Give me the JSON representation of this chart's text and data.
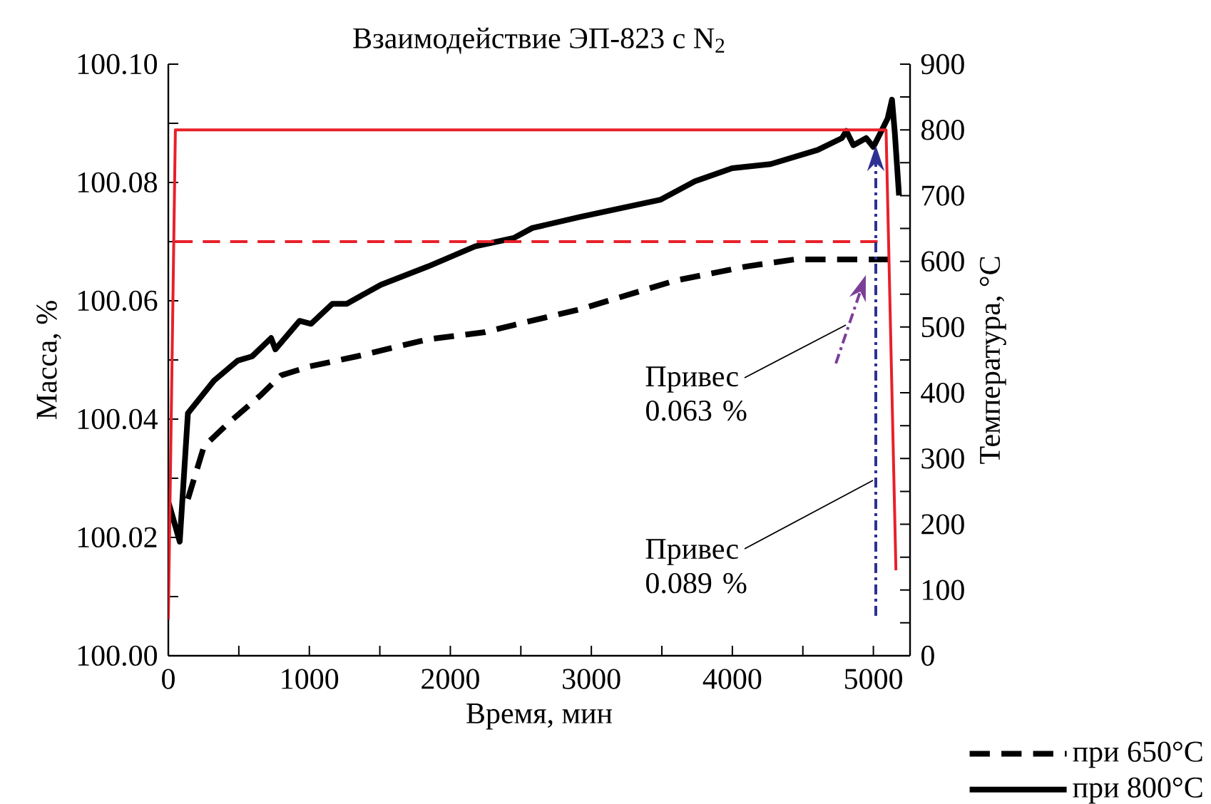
{
  "chart_data": {
    "type": "line",
    "title": "Взаимодействие ЭП-823 с N$_{2}$",
    "xlabel": "Время, мин",
    "ylabel": "Масса, %",
    "y2label": "Температура, °C",
    "xlim": [
      0,
      5260
    ],
    "ylim": [
      100.0,
      100.1
    ],
    "y2lim": [
      0,
      900
    ],
    "xticks": [
      0,
      {
        "value": 500,
        "label": null
      },
      1000,
      {
        "value": 1500,
        "label": null
      },
      2000,
      {
        "value": 2500,
        "label": null
      },
      3000,
      {
        "value": 3500,
        "label": null
      },
      4000,
      {
        "value": 4500,
        "label": null
      },
      5000
    ],
    "yticks": [
      {
        "value": 100.0,
        "label": "100.00"
      },
      {
        "value": 100.01,
        "label": null
      },
      {
        "value": 100.02,
        "label": "100.02"
      },
      {
        "value": 100.03,
        "label": null
      },
      {
        "value": 100.04,
        "label": "100.04"
      },
      {
        "value": 100.05,
        "label": null
      },
      {
        "value": 100.06,
        "label": "100.06"
      },
      {
        "value": 100.07,
        "label": null
      },
      {
        "value": 100.08,
        "label": "100.08"
      },
      {
        "value": 100.09,
        "label": null
      },
      {
        "value": 100.1,
        "label": "100.10"
      }
    ],
    "y2ticks": [
      0,
      {
        "value": 50,
        "label": null
      },
      100,
      {
        "value": 150,
        "label": null
      },
      200,
      {
        "value": 250,
        "label": null
      },
      300,
      {
        "value": 350,
        "label": null
      },
      400,
      {
        "value": 450,
        "label": null
      },
      500,
      {
        "value": 550,
        "label": null
      },
      600,
      {
        "value": 650,
        "label": null
      },
      700,
      {
        "value": 750,
        "label": null
      },
      800,
      {
        "value": 850,
        "label": null
      },
      900
    ],
    "legend": "bottom right",
    "series": [
      {
        "name": "при 650°C",
        "color": "#000000",
        "line_style": "dashed",
        "x": [
          139,
          253,
          425,
          658,
          800,
          1002,
          1336,
          1842,
          2247,
          2449,
          2925,
          3593,
          4099,
          4443,
          5111
        ],
        "values": [
          100.0265,
          100.0354,
          100.0393,
          100.0441,
          100.0474,
          100.0489,
          100.0506,
          100.0535,
          100.0547,
          100.0559,
          100.0586,
          100.0634,
          100.0658,
          100.067,
          100.067
        ]
      },
      {
        "name": "при 800°C",
        "color": "#000000",
        "line_style": "solid",
        "x": [
          3,
          81,
          139,
          324,
          493,
          594,
          729,
          759,
          931,
          1012,
          1164,
          1265,
          1508,
          1842,
          2176,
          2449,
          2581,
          2925,
          3492,
          3735,
          3998,
          4271,
          4605,
          4777,
          4808,
          4858,
          4949,
          5000,
          5051,
          5101,
          5132,
          5152,
          5182
        ],
        "values": [
          100.0258,
          100.0193,
          100.041,
          100.0465,
          100.0499,
          100.0506,
          100.0537,
          100.0518,
          100.0566,
          100.0561,
          100.0595,
          100.0595,
          100.0627,
          100.0658,
          100.0692,
          100.0706,
          100.0723,
          100.0742,
          100.0771,
          100.0802,
          100.0824,
          100.0831,
          100.0855,
          100.0875,
          100.0887,
          100.0863,
          100.0875,
          100.086,
          100.0884,
          100.0908,
          100.094,
          100.0884,
          100.0778
        ]
      },
      {
        "color": "#e8202a",
        "line_style": "solid",
        "axis": "y2",
        "x": [
          0,
          50,
          5090,
          5160
        ],
        "values": [
          55,
          800,
          800,
          130
        ]
      },
      {
        "color": "#e8202a",
        "line_style": "dashed",
        "axis": "y2",
        "x": [
          50,
          5030
        ],
        "values": [
          630,
          630
        ]
      }
    ],
    "annotations": [
      "Привес 0.063 %",
      "Привес 0.089 %"
    ]
  }
}
